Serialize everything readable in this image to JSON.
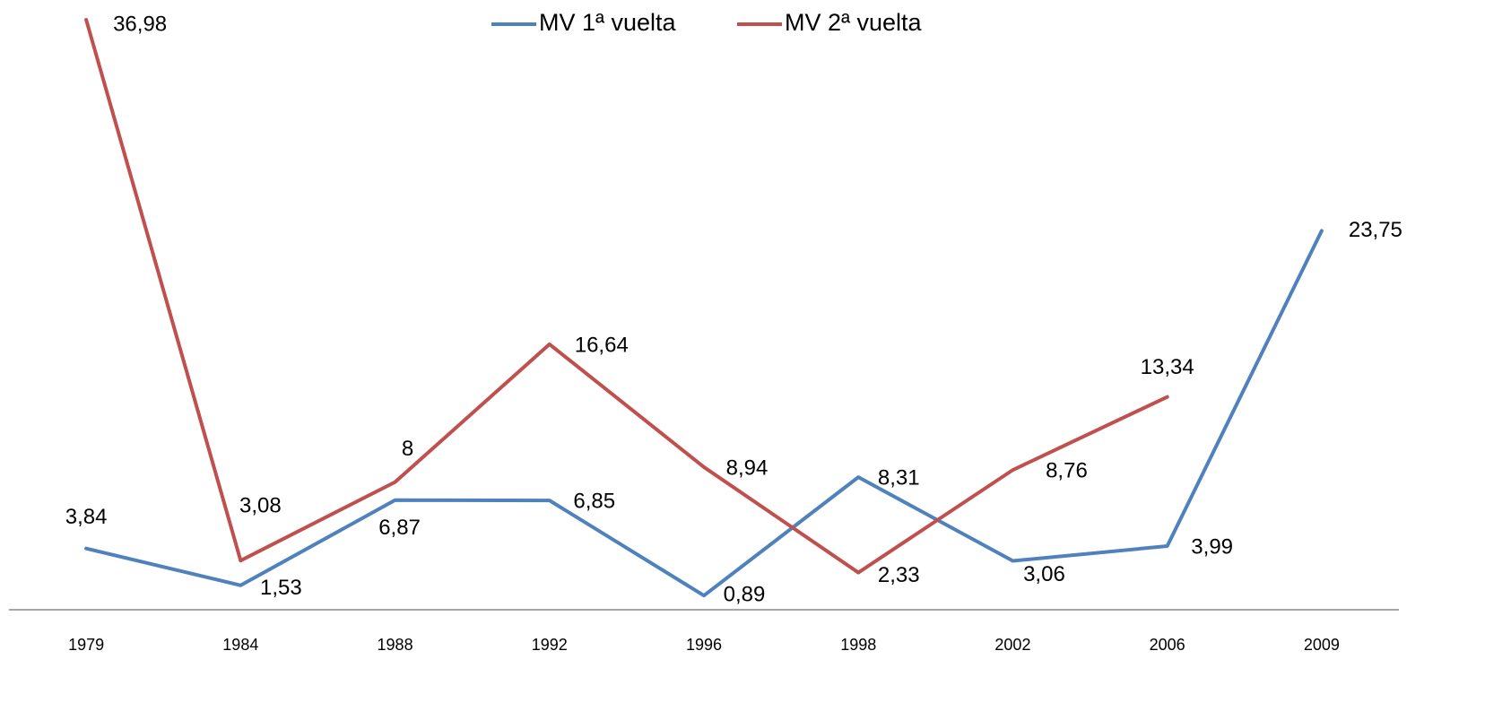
{
  "chart_data": {
    "type": "line",
    "categories": [
      "1979",
      "1984",
      "1988",
      "1992",
      "1996",
      "1998",
      "2002",
      "2006",
      "2009"
    ],
    "series": [
      {
        "name": "MV 1ª vuelta",
        "color": "#4f81bd",
        "values": [
          3.84,
          1.53,
          6.87,
          6.85,
          0.89,
          8.31,
          3.06,
          3.99,
          23.75
        ],
        "value_labels": [
          "3,84",
          "1,53",
          "6,87",
          "6,85",
          "0,89",
          "8,31",
          "3,06",
          "3,99",
          "23,75"
        ]
      },
      {
        "name": "MV 2ª vuelta",
        "color": "#c0504d",
        "values": [
          36.98,
          3.08,
          8,
          16.64,
          8.94,
          2.33,
          8.76,
          13.34,
          null
        ],
        "value_labels": [
          "36,98",
          "3,08",
          "8",
          "16,64",
          "8,94",
          "2,33",
          "8,76",
          "13,34",
          null
        ]
      }
    ],
    "legend": "top"
  }
}
